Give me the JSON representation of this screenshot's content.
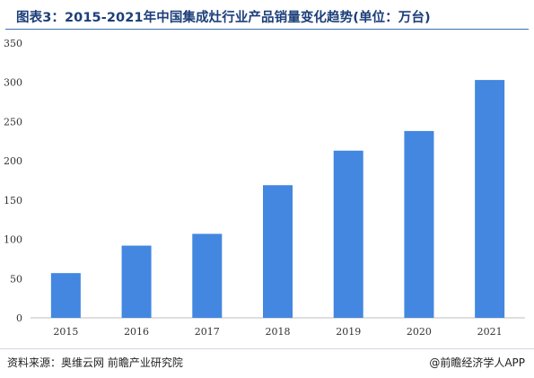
{
  "header": {
    "title": "图表3：2015-2021年中国集成灶行业产品销量变化趋势(单位：万台)"
  },
  "footer": {
    "source": "资料来源：奥维云网 前瞻产业研究院",
    "credit": "@前瞻经济学人APP"
  },
  "colors": {
    "bar": "#4387e0",
    "axis": "#bfbfbf",
    "title": "#1d3f7a"
  },
  "chart_data": {
    "type": "bar",
    "title": "图表3：2015-2021年中国集成灶行业产品销量变化趋势(单位：万台)",
    "categories": [
      "2015",
      "2016",
      "2017",
      "2018",
      "2019",
      "2020",
      "2021"
    ],
    "values": [
      57,
      92,
      107,
      169,
      213,
      238,
      303
    ],
    "ylim": [
      0,
      350
    ],
    "yticks": [
      0,
      50,
      100,
      150,
      200,
      250,
      300,
      350
    ],
    "xlabel": "",
    "ylabel": "",
    "grid": false,
    "legend": "none"
  }
}
